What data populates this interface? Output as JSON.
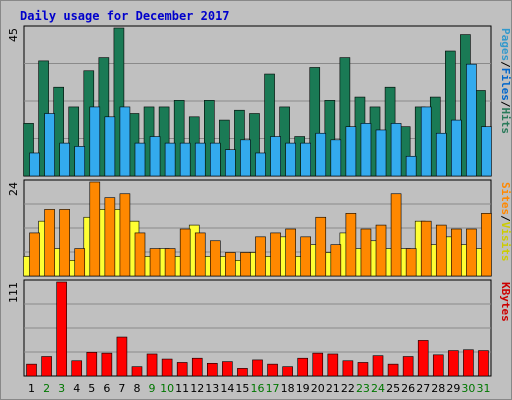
{
  "chart_data": {
    "type": "bar",
    "title": "Daily usage for December 2017",
    "categories": [
      "1",
      "2",
      "3",
      "4",
      "5",
      "6",
      "7",
      "8",
      "9",
      "10",
      "11",
      "12",
      "13",
      "14",
      "15",
      "16",
      "17",
      "18",
      "19",
      "20",
      "21",
      "22",
      "23",
      "24",
      "25",
      "26",
      "27",
      "28",
      "29",
      "30",
      "31"
    ],
    "weekend_days": [
      "2",
      "3",
      "9",
      "10",
      "16",
      "17",
      "23",
      "24",
      "30",
      "31"
    ],
    "colors": {
      "background": "#c0c0c0",
      "frame": "#ffffff",
      "pages": "#2a7a5a",
      "files": "#3a9ad0",
      "hits": "#2a8a6a",
      "visits": "#ffff33",
      "sites": "#ff8800",
      "kbytes": "#ff0000",
      "title": "#0000cc",
      "weekday_tick": "#000000",
      "weekend_tick": "#007700"
    },
    "panels": [
      {
        "name": "hits-panel",
        "ymax": 45,
        "ymax_label": "45",
        "ylabel_parts": [
          {
            "text": "Pages",
            "color": "#3399cc"
          },
          {
            "text": "/",
            "color": "#000000"
          },
          {
            "text": "Files",
            "color": "#0066cc"
          },
          {
            "text": "/",
            "color": "#000000"
          },
          {
            "text": "Hits",
            "color": "#2a7a5a"
          }
        ],
        "series": [
          {
            "name": "Hits",
            "color": "#1a7a55",
            "values": [
              16,
              35,
              27,
              21,
              32,
              36,
              45,
              19,
              21,
              21,
              23,
              18,
              23,
              17,
              20,
              19,
              31,
              21,
              12,
              33,
              23,
              36,
              24,
              21,
              27,
              15,
              21,
              24,
              38,
              43,
              26
            ]
          },
          {
            "name": "Files",
            "color": "#33aaee",
            "values": [
              7,
              19,
              10,
              9,
              21,
              18,
              21,
              10,
              12,
              10,
              10,
              10,
              10,
              8,
              11,
              7,
              12,
              10,
              10,
              13,
              11,
              15,
              16,
              14,
              16,
              6,
              21,
              13,
              17,
              34,
              15
            ]
          }
        ]
      },
      {
        "name": "visits-panel",
        "ymax": 24,
        "ymax_label": "24",
        "ylabel_parts": [
          {
            "text": "Sites",
            "color": "#ff8800"
          },
          {
            "text": "/",
            "color": "#000000"
          },
          {
            "text": "Visits",
            "color": "#cccc00"
          }
        ],
        "series": [
          {
            "name": "Visits",
            "color": "#ffff33",
            "values": [
              5,
              14,
              7,
              4,
              15,
              17,
              17,
              14,
              5,
              7,
              5,
              13,
              5,
              5,
              4,
              6,
              5,
              10,
              5,
              8,
              6,
              11,
              7,
              9,
              7,
              7,
              14,
              8,
              10,
              8,
              7
            ]
          },
          {
            "name": "Sites",
            "color": "#ff8800",
            "values": [
              11,
              17,
              17,
              7,
              24,
              20,
              21,
              11,
              7,
              7,
              12,
              11,
              9,
              6,
              6,
              10,
              11,
              12,
              10,
              15,
              8,
              16,
              12,
              13,
              21,
              7,
              14,
              13,
              12,
              12,
              16
            ]
          }
        ]
      },
      {
        "name": "kbytes-panel",
        "ymax": 111,
        "ymax_label": "111",
        "ylabel_parts": [
          {
            "text": "KBytes",
            "color": "#cc0000"
          }
        ],
        "series": [
          {
            "name": "KBytes",
            "color": "#ff0000",
            "values": [
              14,
              23,
              111,
              18,
              28,
              27,
              46,
              11,
              26,
              20,
              16,
              21,
              15,
              17,
              9,
              19,
              14,
              11,
              21,
              27,
              26,
              18,
              16,
              24,
              14,
              23,
              42,
              25,
              30,
              31,
              30
            ]
          }
        ]
      }
    ]
  }
}
